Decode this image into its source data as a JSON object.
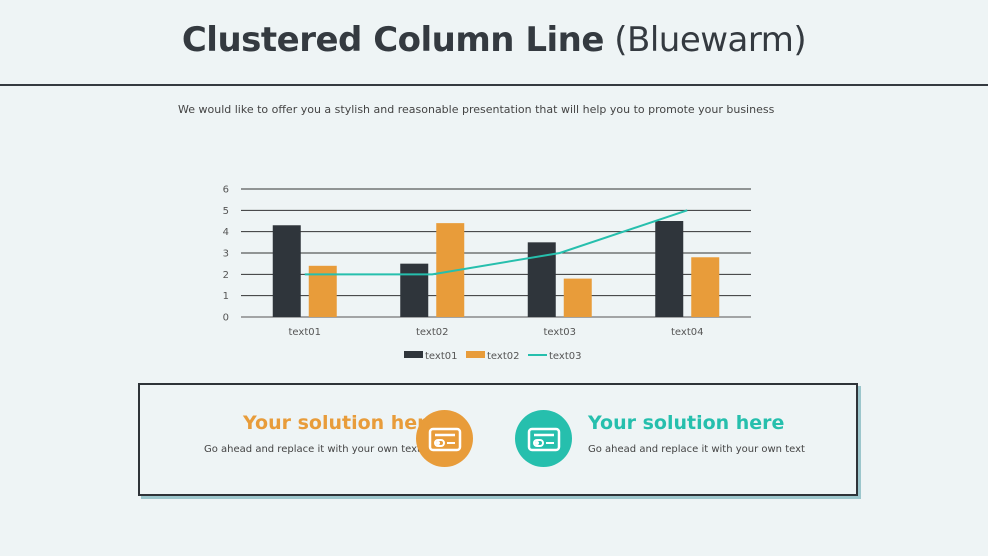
{
  "page": {
    "title_bold": "Clustered Column Line",
    "title_rest": " (Bluewarm)",
    "subtitle": "We would like to offer you a stylish and reasonable presentation that will help you to promote your business"
  },
  "chart_data": {
    "type": "bar",
    "categories": [
      "text01",
      "text02",
      "text03",
      "text04"
    ],
    "series": [
      {
        "name": "text01",
        "type": "bar",
        "color": "#2f353b",
        "values": [
          4.3,
          2.5,
          3.5,
          4.5
        ]
      },
      {
        "name": "text02",
        "type": "bar",
        "color": "#e89c3a",
        "values": [
          2.4,
          4.4,
          1.8,
          2.8
        ]
      },
      {
        "name": "text03",
        "type": "line",
        "color": "#26bfad",
        "values": [
          2.0,
          2.0,
          3.0,
          5.0
        ]
      }
    ],
    "ylim": [
      0,
      6
    ],
    "yticks": [
      0,
      1,
      2,
      3,
      4,
      5,
      6
    ],
    "grid": true,
    "legend": "bottom"
  },
  "solutions": [
    {
      "title": "Your solution here",
      "text": "Go ahead and replace it with your own text",
      "color": "#e89c3a",
      "icon": "credit-card-icon"
    },
    {
      "title": "Your solution here",
      "text": "Go ahead and replace it with your own text",
      "color": "#26bfad",
      "icon": "credit-card-icon"
    }
  ]
}
